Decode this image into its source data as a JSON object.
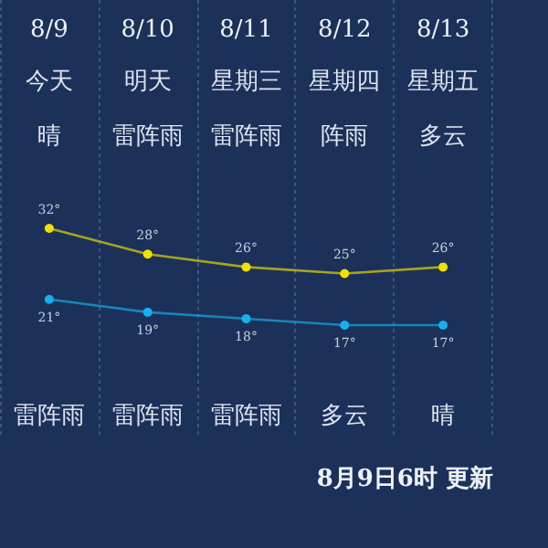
{
  "chart_data": {
    "type": "line",
    "categories": [
      "8/9",
      "8/10",
      "8/11",
      "8/12",
      "8/13"
    ],
    "series": [
      {
        "color": "#f2e000",
        "values": [
          32,
          28,
          26,
          25,
          26
        ],
        "value_labels": [
          "32°",
          "28°",
          "26°",
          "25°",
          "26°"
        ]
      },
      {
        "color": "#17b0ee",
        "values": [
          21,
          19,
          18,
          17,
          17
        ],
        "value_labels": [
          "21°",
          "19°",
          "18°",
          "17°",
          "17°"
        ]
      }
    ],
    "annotations": [
      "今天",
      "明天",
      "星期三",
      "星期四",
      "星期五",
      "晴",
      "雷阵雨",
      "雷阵雨",
      "阵雨",
      "多云",
      "雷阵雨",
      "雷阵雨",
      "雷阵雨",
      "多云",
      "晴",
      "8月9日6时 更新"
    ],
    "grid": "x",
    "marker": "circle",
    "tick_labels": "x"
  }
}
